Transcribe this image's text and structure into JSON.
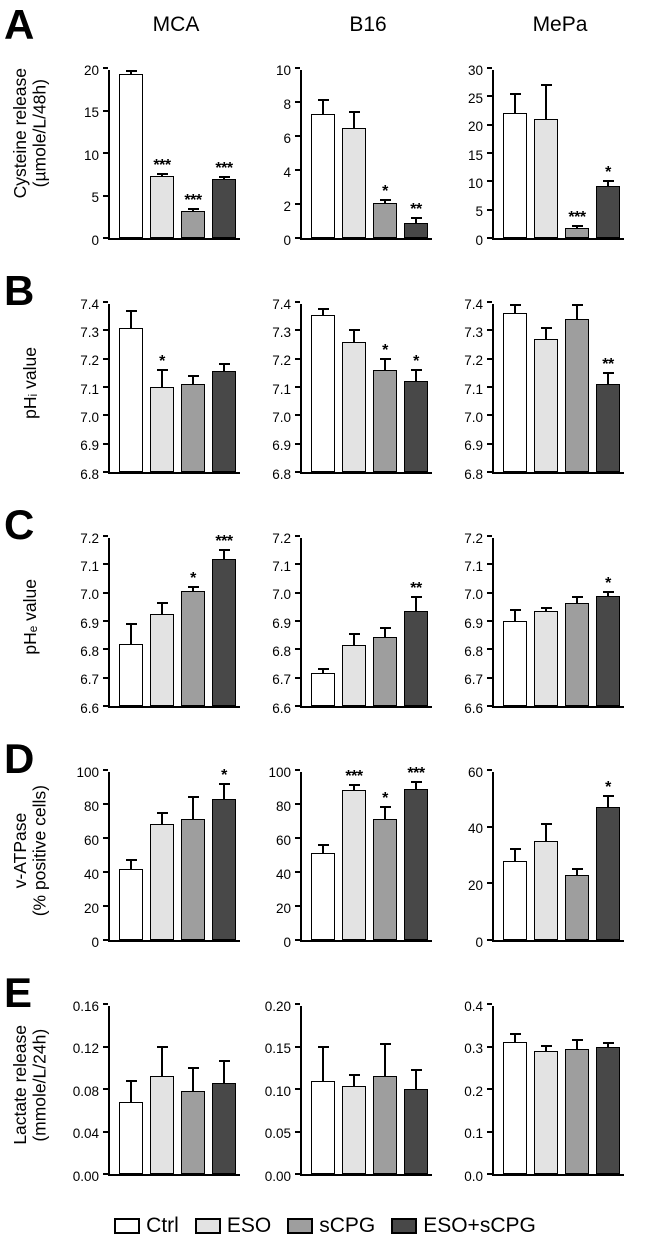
{
  "figure": {
    "column_headers": [
      "MCA",
      "B16",
      "MePa"
    ],
    "legend": [
      {
        "label": "Ctrl",
        "color": "#ffffff"
      },
      {
        "label": "ESO",
        "color": "#e3e3e3"
      },
      {
        "label": "sCPG",
        "color": "#9e9e9e"
      },
      {
        "label": "ESO+sCPG",
        "color": "#484848"
      }
    ]
  },
  "chart_data": [
    {
      "panel": "A",
      "type": "bar",
      "ylabel": "Cysteine release (µmole/L/48h)",
      "ylabel_lines": [
        "Cysteine release",
        "(µmole/L/48h)"
      ],
      "categories": [
        "Ctrl",
        "ESO",
        "sCPG",
        "ESO+sCPG"
      ],
      "charts": [
        {
          "title": "MCA",
          "ylim": [
            0,
            20
          ],
          "yticks": [
            "0",
            "5",
            "10",
            "15",
            "20"
          ],
          "values": [
            19.3,
            7.3,
            3.2,
            7.0
          ],
          "errors": [
            0.3,
            0.2,
            0.2,
            0.2
          ],
          "sig": [
            "",
            "***",
            "***",
            "***"
          ]
        },
        {
          "title": "B16",
          "ylim": [
            0,
            10
          ],
          "yticks": [
            "0",
            "2",
            "4",
            "6",
            "8",
            "10"
          ],
          "values": [
            7.3,
            6.5,
            2.05,
            0.9
          ],
          "errors": [
            0.8,
            0.9,
            0.2,
            0.3
          ],
          "sig": [
            "",
            "",
            "*",
            "**"
          ]
        },
        {
          "title": "MePa",
          "ylim": [
            0,
            30
          ],
          "yticks": [
            "0",
            "5",
            "10",
            "15",
            "20",
            "25",
            "30"
          ],
          "values": [
            22,
            21,
            1.8,
            9.2
          ],
          "errors": [
            3.5,
            6,
            0.4,
            0.8
          ],
          "sig": [
            "",
            "",
            "***",
            "*"
          ]
        }
      ]
    },
    {
      "panel": "B",
      "type": "bar",
      "ylabel": "pHᵢ value",
      "ylabel_lines": [
        "pHᵢ value"
      ],
      "categories": [
        "Ctrl",
        "ESO",
        "sCPG",
        "ESO+sCPG"
      ],
      "charts": [
        {
          "title": "MCA",
          "ylim": [
            6.8,
            7.4
          ],
          "yticks": [
            "6.8",
            "6.9",
            "7.0",
            "7.1",
            "7.2",
            "7.3",
            "7.4"
          ],
          "values": [
            7.31,
            7.1,
            7.11,
            7.155
          ],
          "errors": [
            0.06,
            0.06,
            0.03,
            0.025
          ],
          "sig": [
            "",
            "*",
            "",
            ""
          ]
        },
        {
          "title": "B16",
          "ylim": [
            6.8,
            7.4
          ],
          "yticks": [
            "6.8",
            "6.9",
            "7.0",
            "7.1",
            "7.2",
            "7.3",
            "7.4"
          ],
          "values": [
            7.355,
            7.26,
            7.16,
            7.12
          ],
          "errors": [
            0.02,
            0.04,
            0.04,
            0.04
          ],
          "sig": [
            "",
            "",
            "*",
            "*"
          ]
        },
        {
          "title": "MePa",
          "ylim": [
            6.8,
            7.4
          ],
          "yticks": [
            "6.8",
            "6.9",
            "7.0",
            "7.1",
            "7.2",
            "7.3",
            "7.4"
          ],
          "values": [
            7.36,
            7.27,
            7.34,
            7.11
          ],
          "errors": [
            0.03,
            0.04,
            0.05,
            0.04
          ],
          "sig": [
            "",
            "",
            "",
            "**"
          ]
        }
      ]
    },
    {
      "panel": "C",
      "type": "bar",
      "ylabel": "pHₑ value",
      "ylabel_lines": [
        "pHₑ value"
      ],
      "categories": [
        "Ctrl",
        "ESO",
        "sCPG",
        "ESO+sCPG"
      ],
      "charts": [
        {
          "title": "MCA",
          "ylim": [
            6.6,
            7.2
          ],
          "yticks": [
            "6.6",
            "6.7",
            "6.8",
            "6.9",
            "7.0",
            "7.1",
            "7.2"
          ],
          "values": [
            6.82,
            6.925,
            7.005,
            7.12
          ],
          "errors": [
            0.07,
            0.04,
            0.015,
            0.03
          ],
          "sig": [
            "",
            "",
            "*",
            "***"
          ]
        },
        {
          "title": "B16",
          "ylim": [
            6.6,
            7.2
          ],
          "yticks": [
            "6.6",
            "6.7",
            "6.8",
            "6.9",
            "7.0",
            "7.1",
            "7.2"
          ],
          "values": [
            6.715,
            6.815,
            6.845,
            6.935
          ],
          "errors": [
            0.015,
            0.04,
            0.03,
            0.05
          ],
          "sig": [
            "",
            "",
            "",
            "**"
          ]
        },
        {
          "title": "MePa",
          "ylim": [
            6.6,
            7.2
          ],
          "yticks": [
            "6.6",
            "6.7",
            "6.8",
            "6.9",
            "7.0",
            "7.1",
            "7.2"
          ],
          "values": [
            6.9,
            6.935,
            6.965,
            6.99
          ],
          "errors": [
            0.04,
            0.012,
            0.02,
            0.012
          ],
          "sig": [
            "",
            "",
            "",
            "*"
          ]
        }
      ]
    },
    {
      "panel": "D",
      "type": "bar",
      "ylabel": "v-ATPase (% positive cells)",
      "ylabel_lines": [
        "v-ATPase",
        "(% positive cells)"
      ],
      "categories": [
        "Ctrl",
        "ESO",
        "sCPG",
        "ESO+sCPG"
      ],
      "charts": [
        {
          "title": "MCA",
          "ylim": [
            0,
            100
          ],
          "yticks": [
            "0",
            "20",
            "40",
            "60",
            "80",
            "100"
          ],
          "values": [
            42,
            68,
            71,
            83
          ],
          "errors": [
            5,
            7,
            13,
            9
          ],
          "sig": [
            "",
            "",
            "",
            "*"
          ]
        },
        {
          "title": "B16",
          "ylim": [
            0,
            100
          ],
          "yticks": [
            "0",
            "20",
            "40",
            "60",
            "80",
            "100"
          ],
          "values": [
            51,
            88,
            71,
            89
          ],
          "errors": [
            5,
            3,
            7,
            4
          ],
          "sig": [
            "",
            "***",
            "*",
            "***"
          ]
        },
        {
          "title": "MePa",
          "ylim": [
            0,
            60
          ],
          "yticks": [
            "0",
            "20",
            "40",
            "60"
          ],
          "values": [
            28,
            35,
            23,
            47
          ],
          "errors": [
            4,
            6,
            2,
            4
          ],
          "sig": [
            "",
            "",
            "",
            "*"
          ]
        }
      ]
    },
    {
      "panel": "E",
      "type": "bar",
      "ylabel": "Lactate release (mmole/L/24h)",
      "ylabel_lines": [
        "Lactate release",
        "(mmole/L/24h)"
      ],
      "categories": [
        "Ctrl",
        "ESO",
        "sCPG",
        "ESO+sCPG"
      ],
      "charts": [
        {
          "title": "MCA",
          "ylim": [
            0,
            0.16
          ],
          "yticks": [
            "0.00",
            "0.04",
            "0.08",
            "0.12",
            "0.16"
          ],
          "values": [
            0.068,
            0.092,
            0.078,
            0.086
          ],
          "errors": [
            0.02,
            0.028,
            0.022,
            0.02
          ],
          "sig": [
            "",
            "",
            "",
            ""
          ]
        },
        {
          "title": "B16",
          "ylim": [
            0,
            0.2
          ],
          "yticks": [
            "0.00",
            "0.05",
            "0.10",
            "0.15",
            "0.20"
          ],
          "values": [
            0.11,
            0.103,
            0.115,
            0.1
          ],
          "errors": [
            0.04,
            0.013,
            0.038,
            0.022
          ],
          "sig": [
            "",
            "",
            "",
            ""
          ]
        },
        {
          "title": "MePa",
          "ylim": [
            0,
            0.4
          ],
          "yticks": [
            "0.0",
            "0.1",
            "0.2",
            "0.3",
            "0.4"
          ],
          "values": [
            0.31,
            0.29,
            0.295,
            0.3
          ],
          "errors": [
            0.02,
            0.012,
            0.02,
            0.008
          ],
          "sig": [
            "",
            "",
            "",
            ""
          ]
        }
      ]
    }
  ]
}
